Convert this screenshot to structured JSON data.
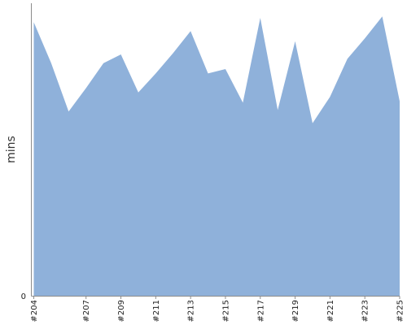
{
  "chart_data": {
    "type": "area",
    "title": "",
    "xlabel": "",
    "ylabel": "mins",
    "ylim": [
      0,
      100
    ],
    "y_tick_labels": [
      "0"
    ],
    "x_tick_labels": [
      "#204",
      "#207",
      "#209",
      "#211",
      "#213",
      "#215",
      "#217",
      "#219",
      "#221",
      "#223",
      "#225"
    ],
    "grid": false,
    "legend": "none",
    "color": "#8fb1da",
    "x": [
      "#204",
      "#205",
      "#206",
      "#207",
      "#208",
      "#209",
      "#210",
      "#211",
      "#212",
      "#213",
      "#214",
      "#215",
      "#216",
      "#217",
      "#218",
      "#219",
      "#220",
      "#221",
      "#222",
      "#223",
      "#224",
      "#225"
    ],
    "series": [
      {
        "values": [
          93.5,
          79.5,
          63.0,
          71.0,
          79.5,
          82.5,
          69.5,
          76.0,
          83.0,
          90.5,
          76.0,
          77.5,
          66.0,
          95.0,
          63.5,
          87.0,
          59.0,
          68.0,
          81.0,
          88.0,
          95.5,
          66.5
        ]
      }
    ]
  }
}
